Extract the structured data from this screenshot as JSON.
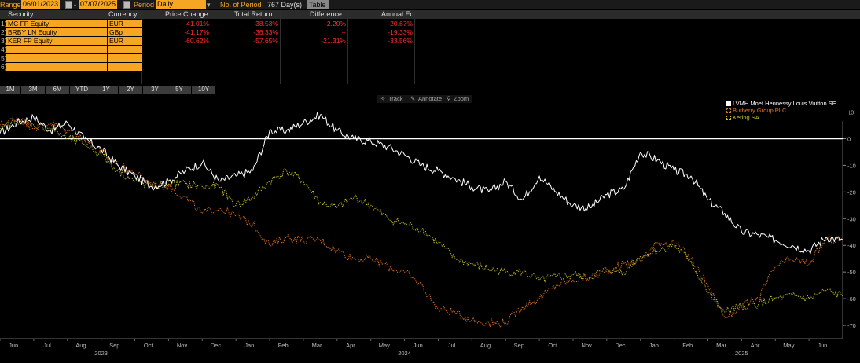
{
  "controls": {
    "range_label": "Range",
    "start_date": "06/01/2023",
    "dash": "-",
    "end_date": "07/07/2025",
    "period_label": "Period",
    "period_value": "Daily",
    "num_period_label": "No. of Period",
    "num_period_value": "767 Day(s)",
    "table_button": "Table"
  },
  "table": {
    "headers": [
      "Security",
      "Currency",
      "Price Change",
      "Total Return",
      "Difference",
      "Annual Eq"
    ],
    "rows": [
      {
        "index": "1)",
        "security": "MC FP Equity",
        "currency": "EUR",
        "price_change": "-41.01%",
        "total_return": "-38.53%",
        "difference": "-2.20%",
        "annual_eq": "-20.67%"
      },
      {
        "index": "2)",
        "security": "BRBY LN Equity",
        "currency": "GBp",
        "price_change": "-41.17%",
        "total_return": "-36.33%",
        "difference": "--",
        "annual_eq": "-19.33%"
      },
      {
        "index": "3)",
        "security": "KER FP Equity",
        "currency": "EUR",
        "price_change": "-60.62%",
        "total_return": "-57.65%",
        "difference": "-21.31%",
        "annual_eq": "-33.56%"
      },
      {
        "index": "4)",
        "security": "",
        "currency": "",
        "price_change": "",
        "total_return": "",
        "difference": "",
        "annual_eq": ""
      },
      {
        "index": "5)",
        "security": "",
        "currency": "",
        "price_change": "",
        "total_return": "",
        "difference": "",
        "annual_eq": ""
      },
      {
        "index": "6)",
        "security": "",
        "currency": "",
        "price_change": "",
        "total_return": "",
        "difference": "",
        "annual_eq": ""
      }
    ]
  },
  "periods": [
    "1M",
    "3M",
    "6M",
    "YTD",
    "1Y",
    "2Y",
    "3Y",
    "5Y",
    "10Y"
  ],
  "tools": {
    "track": "Track",
    "annotate": "Annotate",
    "zoom": "Zoom"
  },
  "colors": {
    "accent": "#f5a623",
    "negative": "#ff3030",
    "lvmh": "#ffffff",
    "burberry": "#e0742a",
    "kering": "#c9c32a"
  },
  "chart_data": {
    "type": "line",
    "x_axis": {
      "months": [
        "Jun",
        "Jul",
        "Aug",
        "Sep",
        "Oct",
        "Nov",
        "Dec",
        "Jan",
        "Feb",
        "Mar",
        "Apr",
        "May",
        "Jun",
        "Jul",
        "Aug",
        "Sep",
        "Oct",
        "Nov",
        "Dec",
        "Jan",
        "Feb",
        "Mar",
        "Apr",
        "May",
        "Jun"
      ],
      "years": [
        {
          "label": "2023",
          "month_index": 3
        },
        {
          "label": "2024",
          "month_index": 12
        },
        {
          "label": "2025",
          "month_index": 22
        }
      ],
      "range": [
        0,
        25
      ]
    },
    "y_axis": {
      "ticks": [
        10,
        0,
        -10,
        -20,
        -30,
        -40,
        -50,
        -60,
        -70
      ],
      "ylim": [
        -75,
        14
      ],
      "zero_line": true
    },
    "legend_position": "top-right",
    "series": [
      {
        "name": "LVMH Moet Hennessy Louis Vuitton SE",
        "color": "#ffffff",
        "style": "solid",
        "points": [
          [
            0,
            2
          ],
          [
            0.5,
            6
          ],
          [
            1,
            8
          ],
          [
            1.5,
            3
          ],
          [
            2,
            6
          ],
          [
            2.5,
            0
          ],
          [
            3,
            -4
          ],
          [
            3.5,
            -10
          ],
          [
            4,
            -14
          ],
          [
            4.5,
            -18
          ],
          [
            5,
            -16
          ],
          [
            5.5,
            -12
          ],
          [
            6,
            -9
          ],
          [
            6.5,
            -16
          ],
          [
            7,
            -14
          ],
          [
            7.5,
            -12
          ],
          [
            8,
            3
          ],
          [
            8.5,
            3
          ],
          [
            9,
            6
          ],
          [
            9.5,
            9
          ],
          [
            10,
            3
          ],
          [
            10.5,
            0
          ],
          [
            11,
            -1
          ],
          [
            11.5,
            -3
          ],
          [
            12,
            -6
          ],
          [
            12.5,
            -10
          ],
          [
            13,
            -12
          ],
          [
            13.5,
            -15
          ],
          [
            14,
            -18
          ],
          [
            14.5,
            -20
          ],
          [
            15,
            -16
          ],
          [
            15.5,
            -23
          ],
          [
            16,
            -14
          ],
          [
            16.5,
            -20
          ],
          [
            17,
            -25
          ],
          [
            17.5,
            -26
          ],
          [
            18,
            -21
          ],
          [
            18.5,
            -19
          ],
          [
            19,
            -5
          ],
          [
            19.5,
            -8
          ],
          [
            20,
            -12
          ],
          [
            20.5,
            -14
          ],
          [
            21,
            -23
          ],
          [
            21.5,
            -28
          ],
          [
            22,
            -35
          ],
          [
            22.5,
            -36
          ],
          [
            23,
            -38
          ],
          [
            23.5,
            -40
          ],
          [
            24,
            -42
          ],
          [
            24.5,
            -37
          ],
          [
            25,
            -38
          ]
        ]
      },
      {
        "name": "Burberry Group PLC",
        "color": "#e0742a",
        "style": "dotted",
        "points": [
          [
            0,
            5
          ],
          [
            0.5,
            8
          ],
          [
            1,
            4
          ],
          [
            1.5,
            6
          ],
          [
            2,
            3
          ],
          [
            2.5,
            0
          ],
          [
            3,
            -5
          ],
          [
            3.5,
            -10
          ],
          [
            4,
            -13
          ],
          [
            4.5,
            -17
          ],
          [
            5,
            -18
          ],
          [
            5.5,
            -22
          ],
          [
            6,
            -28
          ],
          [
            6.5,
            -26
          ],
          [
            7,
            -29
          ],
          [
            7.5,
            -32
          ],
          [
            8,
            -40
          ],
          [
            8.5,
            -37
          ],
          [
            9,
            -38
          ],
          [
            9.5,
            -38
          ],
          [
            10,
            -42
          ],
          [
            10.5,
            -45
          ],
          [
            11,
            -45
          ],
          [
            11.5,
            -48
          ],
          [
            12,
            -50
          ],
          [
            12.5,
            -55
          ],
          [
            13,
            -64
          ],
          [
            13.5,
            -65
          ],
          [
            14,
            -68
          ],
          [
            14.5,
            -69
          ],
          [
            15,
            -69
          ],
          [
            15.5,
            -63
          ],
          [
            16,
            -60
          ],
          [
            16.5,
            -55
          ],
          [
            17,
            -53
          ],
          [
            17.5,
            -52
          ],
          [
            18,
            -50
          ],
          [
            18.5,
            -47
          ],
          [
            19,
            -46
          ],
          [
            19.5,
            -39
          ],
          [
            20,
            -39
          ],
          [
            20.5,
            -45
          ],
          [
            21,
            -55
          ],
          [
            21.5,
            -67
          ],
          [
            22,
            -63
          ],
          [
            22.5,
            -60
          ],
          [
            23,
            -48
          ],
          [
            23.5,
            -45
          ],
          [
            24,
            -47
          ],
          [
            24.5,
            -38
          ],
          [
            25,
            -38
          ]
        ]
      },
      {
        "name": "Kering SA",
        "color": "#c9c32a",
        "style": "dotted",
        "points": [
          [
            0,
            3
          ],
          [
            0.5,
            7
          ],
          [
            1,
            5
          ],
          [
            1.5,
            4
          ],
          [
            2,
            0
          ],
          [
            2.5,
            -2
          ],
          [
            3,
            -6
          ],
          [
            3.5,
            -12
          ],
          [
            4,
            -16
          ],
          [
            4.5,
            -18
          ],
          [
            5,
            -17
          ],
          [
            5.5,
            -17
          ],
          [
            6,
            -18
          ],
          [
            6.5,
            -18
          ],
          [
            7,
            -25
          ],
          [
            7.5,
            -22
          ],
          [
            8,
            -16
          ],
          [
            8.5,
            -12
          ],
          [
            9,
            -16
          ],
          [
            9.5,
            -24
          ],
          [
            10,
            -26
          ],
          [
            10.5,
            -22
          ],
          [
            11,
            -25
          ],
          [
            11.5,
            -30
          ],
          [
            12,
            -32
          ],
          [
            12.5,
            -34
          ],
          [
            13,
            -39
          ],
          [
            13.5,
            -45
          ],
          [
            14,
            -47
          ],
          [
            14.5,
            -49
          ],
          [
            15,
            -50
          ],
          [
            15.5,
            -50
          ],
          [
            16,
            -53
          ],
          [
            16.5,
            -52
          ],
          [
            17,
            -51
          ],
          [
            17.5,
            -52
          ],
          [
            18,
            -49
          ],
          [
            18.5,
            -50
          ],
          [
            19,
            -44
          ],
          [
            19.5,
            -42
          ],
          [
            20,
            -40
          ],
          [
            20.5,
            -46
          ],
          [
            21,
            -58
          ],
          [
            21.5,
            -65
          ],
          [
            22,
            -63
          ],
          [
            22.5,
            -62
          ],
          [
            23,
            -60
          ],
          [
            23.5,
            -59
          ],
          [
            24,
            -60
          ],
          [
            24.5,
            -57
          ],
          [
            25,
            -59
          ]
        ]
      }
    ]
  }
}
